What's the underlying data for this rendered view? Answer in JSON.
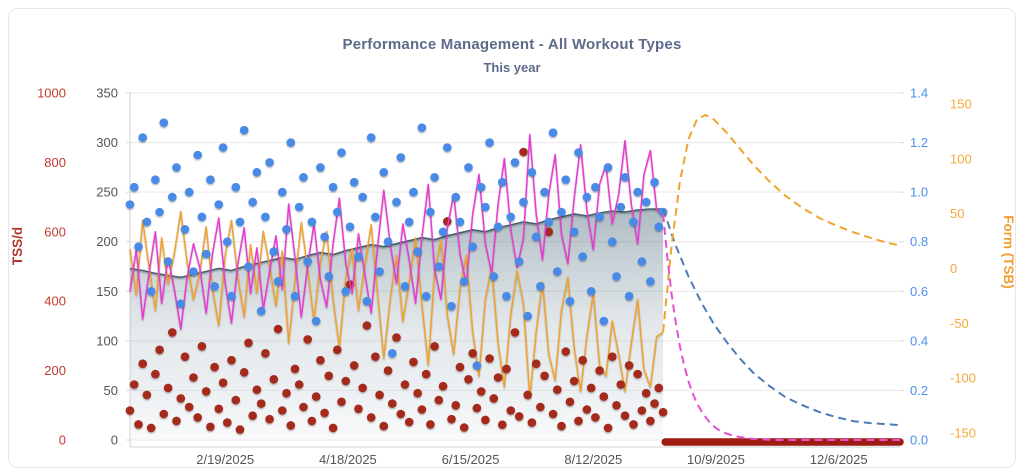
{
  "chart": {
    "title": "Performance Management - All Workout Types",
    "subtitle": "This year",
    "left_axis_title": "TSS/d",
    "right_axis_title": "Form (TSB)"
  },
  "colors": {
    "title": "#5d6b8a",
    "grid": "#e9e9e9",
    "axis_line": "#d9d9d9",
    "tick_red": "#c23b2e",
    "tick_gray": "#555555",
    "tick_blue": "#4d8ef0",
    "tick_orange": "#f5a83a",
    "left_axis_title": "#b2392c",
    "right_axis_title": "#f0a030",
    "blue_dot": "#4a8ae6",
    "red_dot": "#a42a1e",
    "atl_line": "#e83bd2",
    "form_line": "#efa22f",
    "ctl_edge": "#44606e",
    "ctl_fill_top": "#53707f",
    "ctl_fill_bottom": "#eef1f4",
    "ctl_pred": "#4c7cb4",
    "form_pred": "#f0a42f",
    "atl_pred": "#e84fd0",
    "tss_pred": "#9c1c12"
  },
  "chart_data": {
    "type": "line",
    "title": "Performance Management - All Workout Types",
    "subtitle": "This year",
    "x": {
      "day_range": [
        0,
        364
      ],
      "tick_days": [
        45,
        103,
        161,
        219,
        277,
        335
      ],
      "tick_labels": [
        "2/19/2025",
        "4/18/2025",
        "6/15/2025",
        "8/12/2025",
        "10/9/2025",
        "12/6/2025"
      ]
    },
    "axes": {
      "tss": {
        "label": "TSS/d",
        "min": 0,
        "max": 1000,
        "ticks": [
          1000,
          800,
          600,
          400,
          200,
          0
        ]
      },
      "load": {
        "label": "",
        "min": 0,
        "max": 350,
        "ticks": [
          350,
          300,
          250,
          200,
          150,
          100,
          50,
          0
        ]
      },
      "ratio": {
        "label": "",
        "min": 0,
        "max": 1.4,
        "ticks": [
          "1.4",
          "1.2",
          "1.0",
          "0.8",
          "0.6",
          "0.4",
          "0.2",
          "0.0"
        ]
      },
      "form": {
        "label": "Form (TSB)",
        "min": -150,
        "max": 150,
        "ticks": [
          150,
          100,
          50,
          0,
          -50,
          -100,
          -150
        ]
      }
    },
    "grid": "horizontal-only",
    "legend": "none",
    "series": [
      {
        "name": "fitness-ctl-area",
        "kind": "area",
        "axis": "load",
        "color_key": "ctl_edge",
        "start_day": 0,
        "step_days": 6,
        "values": [
          173,
          171,
          168,
          166,
          164,
          167,
          170,
          173,
          171,
          175,
          178,
          181,
          184,
          182,
          186,
          189,
          187,
          191,
          194,
          197,
          195,
          198,
          201,
          204,
          202,
          206,
          209,
          212,
          210,
          214,
          217,
          220,
          218,
          222,
          225,
          228,
          226,
          229,
          231,
          230,
          232,
          233,
          233
        ]
      },
      {
        "name": "form-tsb-line",
        "kind": "line",
        "axis": "form",
        "color_key": "form_line",
        "start_day": 0,
        "step_days": 3,
        "values": [
          18,
          -24,
          44,
          2,
          -38,
          28,
          -14,
          14,
          52,
          6,
          -28,
          -4,
          38,
          -18,
          -52,
          12,
          44,
          -8,
          -44,
          22,
          -22,
          34,
          2,
          -34,
          16,
          -68,
          -12,
          42,
          0,
          -48,
          6,
          34,
          -28,
          -72,
          -8,
          18,
          -38,
          2,
          40,
          -22,
          -82,
          -28,
          12,
          -48,
          -12,
          28,
          -32,
          -88,
          -4,
          26,
          -42,
          -78,
          -18,
          12,
          -58,
          -98,
          -28,
          2,
          -68,
          -108,
          -42,
          -2,
          -32,
          -118,
          -58,
          -12,
          -78,
          -102,
          -38,
          -8,
          -72,
          -112,
          -62,
          -22,
          -88,
          -98,
          -48,
          -78,
          -112,
          -68,
          -28,
          -92,
          -108,
          -62,
          -58
        ]
      },
      {
        "name": "daily-tss-dots",
        "kind": "scatter",
        "axis": "tss",
        "color_key": "red_dot",
        "start_day": 0,
        "step_days": 2,
        "values": [
          85,
          160,
          45,
          220,
          130,
          35,
          190,
          260,
          75,
          150,
          310,
          55,
          120,
          240,
          95,
          180,
          65,
          270,
          140,
          38,
          210,
          90,
          165,
          50,
          230,
          115,
          30,
          195,
          280,
          70,
          145,
          105,
          250,
          60,
          175,
          320,
          85,
          135,
          42,
          205,
          160,
          95,
          290,
          55,
          125,
          230,
          78,
          185,
          35,
          260,
          110,
          170,
          448,
          215,
          90,
          150,
          330,
          65,
          240,
          130,
          40,
          200,
          105,
          295,
          75,
          160,
          52,
          225,
          135,
          88,
          190,
          45,
          270,
          115,
          155,
          630,
          60,
          100,
          210,
          36,
          175,
          250,
          92,
          140,
          58,
          235,
          120,
          180,
          44,
          205,
          85,
          310,
          68,
          830,
          130,
          50,
          220,
          95,
          185,
          600,
          75,
          145,
          40,
          255,
          110,
          170,
          55,
          230,
          88,
          150,
          65,
          200,
          125,
          35,
          240,
          100,
          160,
          70,
          215,
          45,
          190,
          85,
          135,
          55,
          105,
          150,
          80
        ]
      },
      {
        "name": "fatigue-atl-line",
        "kind": "line",
        "axis": "load",
        "color_key": "atl_line",
        "start_day": 0,
        "step_days": 3,
        "values": [
          150,
          192,
          122,
          168,
          210,
          138,
          184,
          152,
          112,
          164,
          198,
          174,
          128,
          188,
          224,
          158,
          118,
          178,
          214,
          148,
          194,
          132,
          170,
          206,
          152,
          238,
          184,
          124,
          176,
          218,
          162,
          134,
          198,
          244,
          178,
          148,
          208,
          168,
          128,
          194,
          252,
          198,
          158,
          218,
          182,
          138,
          204,
          258,
          172,
          142,
          214,
          248,
          188,
          158,
          228,
          268,
          198,
          168,
          238,
          284,
          212,
          174,
          204,
          308,
          228,
          182,
          248,
          288,
          208,
          178,
          244,
          298,
          232,
          192,
          258,
          278,
          218,
          248,
          302,
          238,
          198,
          268,
          292,
          232,
          228
        ]
      },
      {
        "name": "intensity-ratio-dots",
        "kind": "scatter",
        "axis": "ratio",
        "color_key": "blue_dot",
        "start_day": 0,
        "step_days": 2,
        "values": [
          0.95,
          1.02,
          0.78,
          1.22,
          0.88,
          0.6,
          1.05,
          0.92,
          1.28,
          0.72,
          0.98,
          1.1,
          0.55,
          0.85,
          1.0,
          0.68,
          1.15,
          0.9,
          0.75,
          1.05,
          0.62,
          0.95,
          1.18,
          0.8,
          0.58,
          1.02,
          0.88,
          1.25,
          0.7,
          0.96,
          1.08,
          0.52,
          0.9,
          1.12,
          0.76,
          0.64,
          1.0,
          0.85,
          1.2,
          0.58,
          0.94,
          1.06,
          0.72,
          0.88,
          0.48,
          1.1,
          0.82,
          0.66,
          1.02,
          0.92,
          1.16,
          0.6,
          0.86,
          1.04,
          0.74,
          0.98,
          0.56,
          1.22,
          0.9,
          0.68,
          1.08,
          0.8,
          0.35,
          0.96,
          1.14,
          0.62,
          0.88,
          1.0,
          0.76,
          1.26,
          0.58,
          0.92,
          1.06,
          0.7,
          0.84,
          1.18,
          0.54,
          0.98,
          0.88,
          0.64,
          1.1,
          0.78,
          0.3,
          1.02,
          0.94,
          1.2,
          0.66,
          0.86,
          1.04,
          0.58,
          0.9,
          1.12,
          0.72,
          0.96,
          0.5,
          1.08,
          0.82,
          0.62,
          1.0,
          0.88,
          1.24,
          0.68,
          0.92,
          1.05,
          0.56,
          0.84,
          1.16,
          0.74,
          0.98,
          0.6,
          1.02,
          0.9,
          0.48,
          1.1,
          0.8,
          0.66,
          0.94,
          1.06,
          0.58,
          0.88,
          1.0,
          0.72,
          0.96,
          0.64,
          1.04,
          0.86,
          0.92
        ]
      },
      {
        "name": "fitness-prediction",
        "kind": "dashed",
        "axis": "load",
        "color_key": "ctl_pred",
        "points": [
          [
            252,
            233
          ],
          [
            258,
            196
          ],
          [
            264,
            165
          ],
          [
            270,
            139
          ],
          [
            276,
            117
          ],
          [
            282,
            99
          ],
          [
            288,
            83
          ],
          [
            295,
            67
          ],
          [
            302,
            55
          ],
          [
            310,
            43
          ],
          [
            318,
            35
          ],
          [
            326,
            28
          ],
          [
            334,
            23
          ],
          [
            342,
            19
          ],
          [
            350,
            17
          ],
          [
            357,
            16
          ],
          [
            364,
            15
          ]
        ]
      },
      {
        "name": "form-prediction",
        "kind": "dashed",
        "axis": "form",
        "color_key": "form_pred",
        "points": [
          [
            252,
            -58
          ],
          [
            256,
            20
          ],
          [
            260,
            80
          ],
          [
            264,
            118
          ],
          [
            268,
            136
          ],
          [
            272,
            140
          ],
          [
            276,
            136
          ],
          [
            282,
            124
          ],
          [
            288,
            110
          ],
          [
            295,
            94
          ],
          [
            302,
            80
          ],
          [
            310,
            66
          ],
          [
            318,
            55
          ],
          [
            326,
            46
          ],
          [
            334,
            39
          ],
          [
            342,
            33
          ],
          [
            350,
            28
          ],
          [
            357,
            24
          ],
          [
            364,
            21
          ]
        ]
      },
      {
        "name": "tss-prediction-bar",
        "kind": "thickline",
        "axis": "tss",
        "color_key": "tss_pred",
        "points": [
          [
            253,
            0
          ],
          [
            364,
            0
          ]
        ]
      },
      {
        "name": "fatigue-prediction",
        "kind": "dashed",
        "axis": "load",
        "color_key": "atl_pred",
        "points": [
          [
            252,
            228
          ],
          [
            254,
            185
          ],
          [
            256,
            148
          ],
          [
            258,
            118
          ],
          [
            260,
            94
          ],
          [
            262,
            75
          ],
          [
            264,
            59
          ],
          [
            266,
            47
          ],
          [
            268,
            37
          ],
          [
            271,
            26
          ],
          [
            274,
            18
          ],
          [
            277,
            12
          ],
          [
            280,
            8
          ],
          [
            284,
            5
          ],
          [
            288,
            3
          ],
          [
            295,
            1
          ],
          [
            305,
            0
          ],
          [
            364,
            0
          ]
        ]
      }
    ]
  }
}
